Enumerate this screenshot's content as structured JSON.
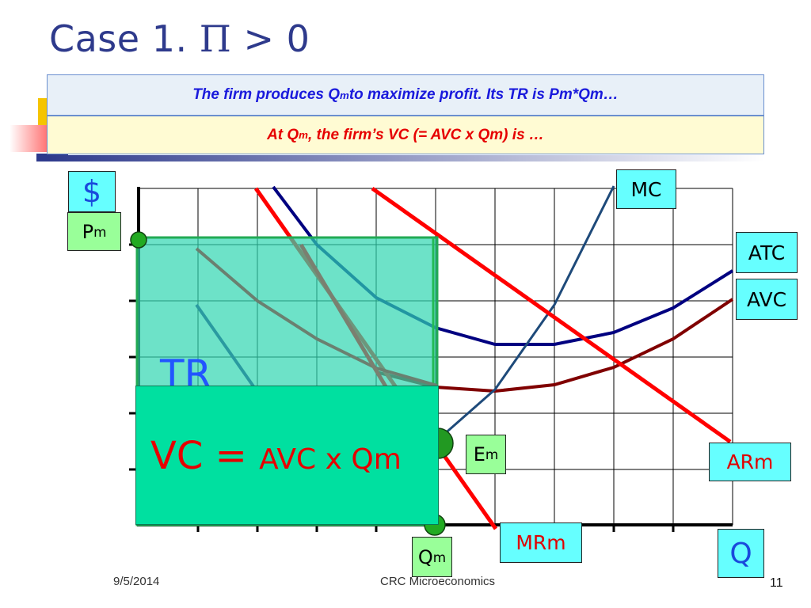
{
  "title": {
    "text": "Case 1.",
    "symbol": "Π",
    "rest": "> 0"
  },
  "box1": {
    "pre": "The firm produces Q",
    "sub": "m",
    "post": " to maximize profit. Its TR is Pm*Qm…"
  },
  "box2": {
    "pre": "At Q",
    "sub": "m",
    "post": ", the firm’s VC  (= AVC x Qm) is …"
  },
  "labels": {
    "dollar": "$",
    "pm": {
      "main": "P",
      "sub": "m"
    },
    "mc": "MC",
    "atc": "ATC",
    "avc": "AVC",
    "em": {
      "main": "E",
      "sub": "m"
    },
    "arm": "ARm",
    "mrm": "MRm",
    "qm": {
      "main": "Q",
      "sub": "m"
    },
    "q": "Q"
  },
  "tr_text": "TR",
  "vc_text": {
    "big": "VC = ",
    "small": "AVC x Qm"
  },
  "footer": {
    "date": "9/5/2014",
    "center": "CRC Microeconomics",
    "page": "11"
  },
  "colors": {
    "title": "#2e3a8c",
    "box1_text": "#1a1adc",
    "box2_text": "#e60000",
    "mc": "#1e4a7a",
    "atc": "#000080",
    "avc": "#800000",
    "demand": "#ff0000",
    "tr_fill": "#2fd6b0",
    "vc_fill": "#00e0a0"
  }
}
